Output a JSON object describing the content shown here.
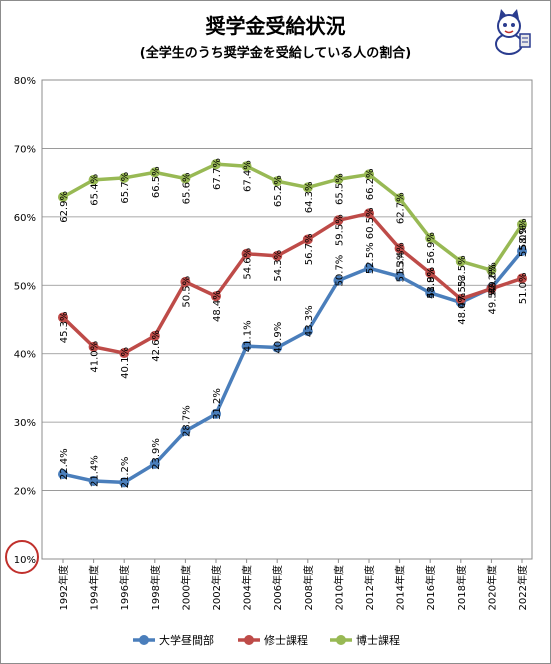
{
  "title": "奨学金受給状況",
  "subtitle": "(全学生のうち奨学金を受給している人の割合)",
  "mascot_icon": "cat-mascot-icon",
  "highlight_color": "#c0302c",
  "chart_data": {
    "type": "line",
    "title": "奨学金受給状況",
    "subtitle": "(全学生のうち奨学金を受給している人の割合)",
    "xlabel": "",
    "ylabel": "",
    "x": [
      "1992年度",
      "1994年度",
      "1996年度",
      "1998年度",
      "2000年度",
      "2002年度",
      "2004年度",
      "2006年度",
      "2008年度",
      "2010年度",
      "2012年度",
      "2014年度",
      "2016年度",
      "2018年度",
      "2020年度",
      "2022年度"
    ],
    "ylim": [
      10,
      80
    ],
    "yticks": [
      "10%",
      "20%",
      "30%",
      "40%",
      "50%",
      "60%",
      "70%",
      "80%"
    ],
    "grid": true,
    "legend_position": "bottom",
    "series": [
      {
        "name": "大学昼間部",
        "color": "#4a7ebb",
        "values": [
          22.4,
          21.4,
          21.2,
          23.9,
          28.7,
          31.2,
          41.1,
          40.9,
          43.3,
          50.7,
          52.5,
          51.3,
          48.9,
          47.5,
          49.6,
          55.0
        ],
        "labels": [
          "22.4%",
          "21.4%",
          "21.2%",
          "23.9%",
          "28.7%",
          "31.2%",
          "41.1%",
          "40.9%",
          "43.3%",
          "50.7%",
          "52.5%",
          "51.3%",
          "48.9%",
          "47.5%",
          "49.6%",
          "55.0%"
        ]
      },
      {
        "name": "修士課程",
        "color": "#be4b48",
        "values": [
          45.3,
          41.0,
          40.1,
          42.6,
          50.5,
          48.4,
          54.6,
          54.3,
          56.7,
          59.5,
          60.5,
          55.4,
          51.8,
          48.0,
          49.5,
          51.0
        ],
        "labels": [
          "45.3%",
          "41.0%",
          "40.1%",
          "42.6%",
          "50.5%",
          "48.4%",
          "54.6%",
          "54.3%",
          "56.7%",
          "59.5%",
          "60.5%",
          "55.4%",
          "51.8%",
          "48.0%",
          "49.5%",
          "51.0%"
        ]
      },
      {
        "name": "博士課程",
        "color": "#98b954",
        "values": [
          62.9,
          65.4,
          65.7,
          66.5,
          65.6,
          67.7,
          67.4,
          65.2,
          64.3,
          65.5,
          66.2,
          62.7,
          56.9,
          53.5,
          52.2,
          58.9
        ],
        "labels": [
          "62.9%",
          "65.4%",
          "65.7%",
          "66.5%",
          "65.6%",
          "67.7%",
          "67.4%",
          "65.2%",
          "64.3%",
          "65.5%",
          "66.2%",
          "62.7%",
          "56.9%",
          "53.5%",
          "52.2%",
          "58.9%"
        ]
      }
    ]
  }
}
